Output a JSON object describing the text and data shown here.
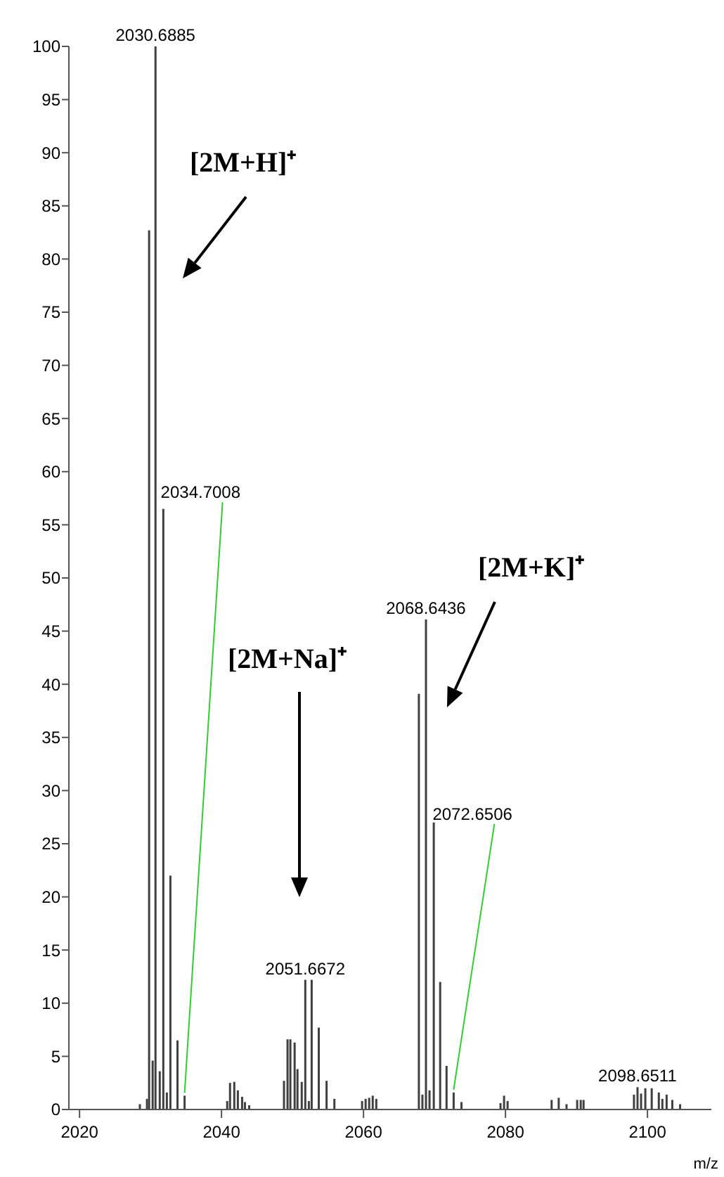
{
  "chart_data": {
    "type": "bar",
    "xlabel": "m/z",
    "x": [
      2028.5,
      2029.5,
      2029.8,
      2030.3,
      2030.7,
      2031.3,
      2031.8,
      2032.3,
      2032.8,
      2033.8,
      2034.8,
      2040.8,
      2041.2,
      2041.8,
      2042.3,
      2042.9,
      2043.3,
      2043.9,
      2048.8,
      2049.3,
      2049.7,
      2050.3,
      2050.7,
      2051.3,
      2051.8,
      2052.3,
      2052.7,
      2053.7,
      2054.8,
      2055.9,
      2059.8,
      2060.3,
      2060.8,
      2061.3,
      2061.8,
      2067.8,
      2068.3,
      2068.8,
      2069.3,
      2069.9,
      2070.8,
      2071.7,
      2072.7,
      2073.8,
      2079.3,
      2079.8,
      2080.3,
      2086.5,
      2087.5,
      2088.6,
      2090.1,
      2090.6,
      2091.0,
      2098.1,
      2098.6,
      2099.1,
      2099.7,
      2100.6,
      2101.6,
      2102.1,
      2102.7,
      2103.5,
      2104.6
    ],
    "values": [
      0.5,
      1.0,
      82.7,
      4.6,
      100,
      3.6,
      56.5,
      1.6,
      22,
      6.5,
      1.3,
      0.8,
      2.5,
      2.6,
      1.8,
      1.2,
      0.7,
      0.4,
      2.7,
      6.6,
      6.6,
      6.3,
      3.8,
      2.6,
      12.2,
      0.8,
      12.2,
      7.7,
      2.7,
      1.0,
      0.8,
      1.0,
      1.1,
      1.3,
      1.0,
      39.1,
      1.4,
      46.1,
      1.8,
      27.0,
      12.0,
      4.1,
      1.6,
      0.7,
      0.6,
      1.3,
      0.8,
      0.9,
      1.1,
      0.5,
      0.9,
      0.9,
      0.9,
      1.4,
      2.1,
      1.5,
      2.0,
      2.0,
      1.6,
      1.0,
      1.4,
      0.9,
      0.5
    ],
    "color": "#404040",
    "xlim": [
      2018.5,
      2109
    ],
    "xticks": [
      2020,
      2040,
      2060,
      2080,
      2100
    ],
    "ylim": [
      0,
      100
    ],
    "yticks": [
      0,
      5,
      10,
      15,
      20,
      25,
      30,
      35,
      40,
      45,
      50,
      55,
      60,
      65,
      70,
      75,
      80,
      85,
      90,
      95,
      100
    ],
    "annotations": [
      {
        "text": "2030.6885",
        "x": 2030.7,
        "y": 100
      },
      {
        "text": "2034.7008",
        "x": 2034.8,
        "y": 1.3
      },
      {
        "text": "2051.6672",
        "x": 2051.8,
        "y": 12.2
      },
      {
        "text": "2068.6436",
        "x": 2068.8,
        "y": 46.1
      },
      {
        "text": "2072.6506",
        "x": 2072.7,
        "y": 1.6
      },
      {
        "text": "2098.6511",
        "x": 2098.6,
        "y": 2.1
      },
      "[2M+H]⁺",
      "[2M+Na]⁺",
      "[2M+K]⁺"
    ]
  }
}
